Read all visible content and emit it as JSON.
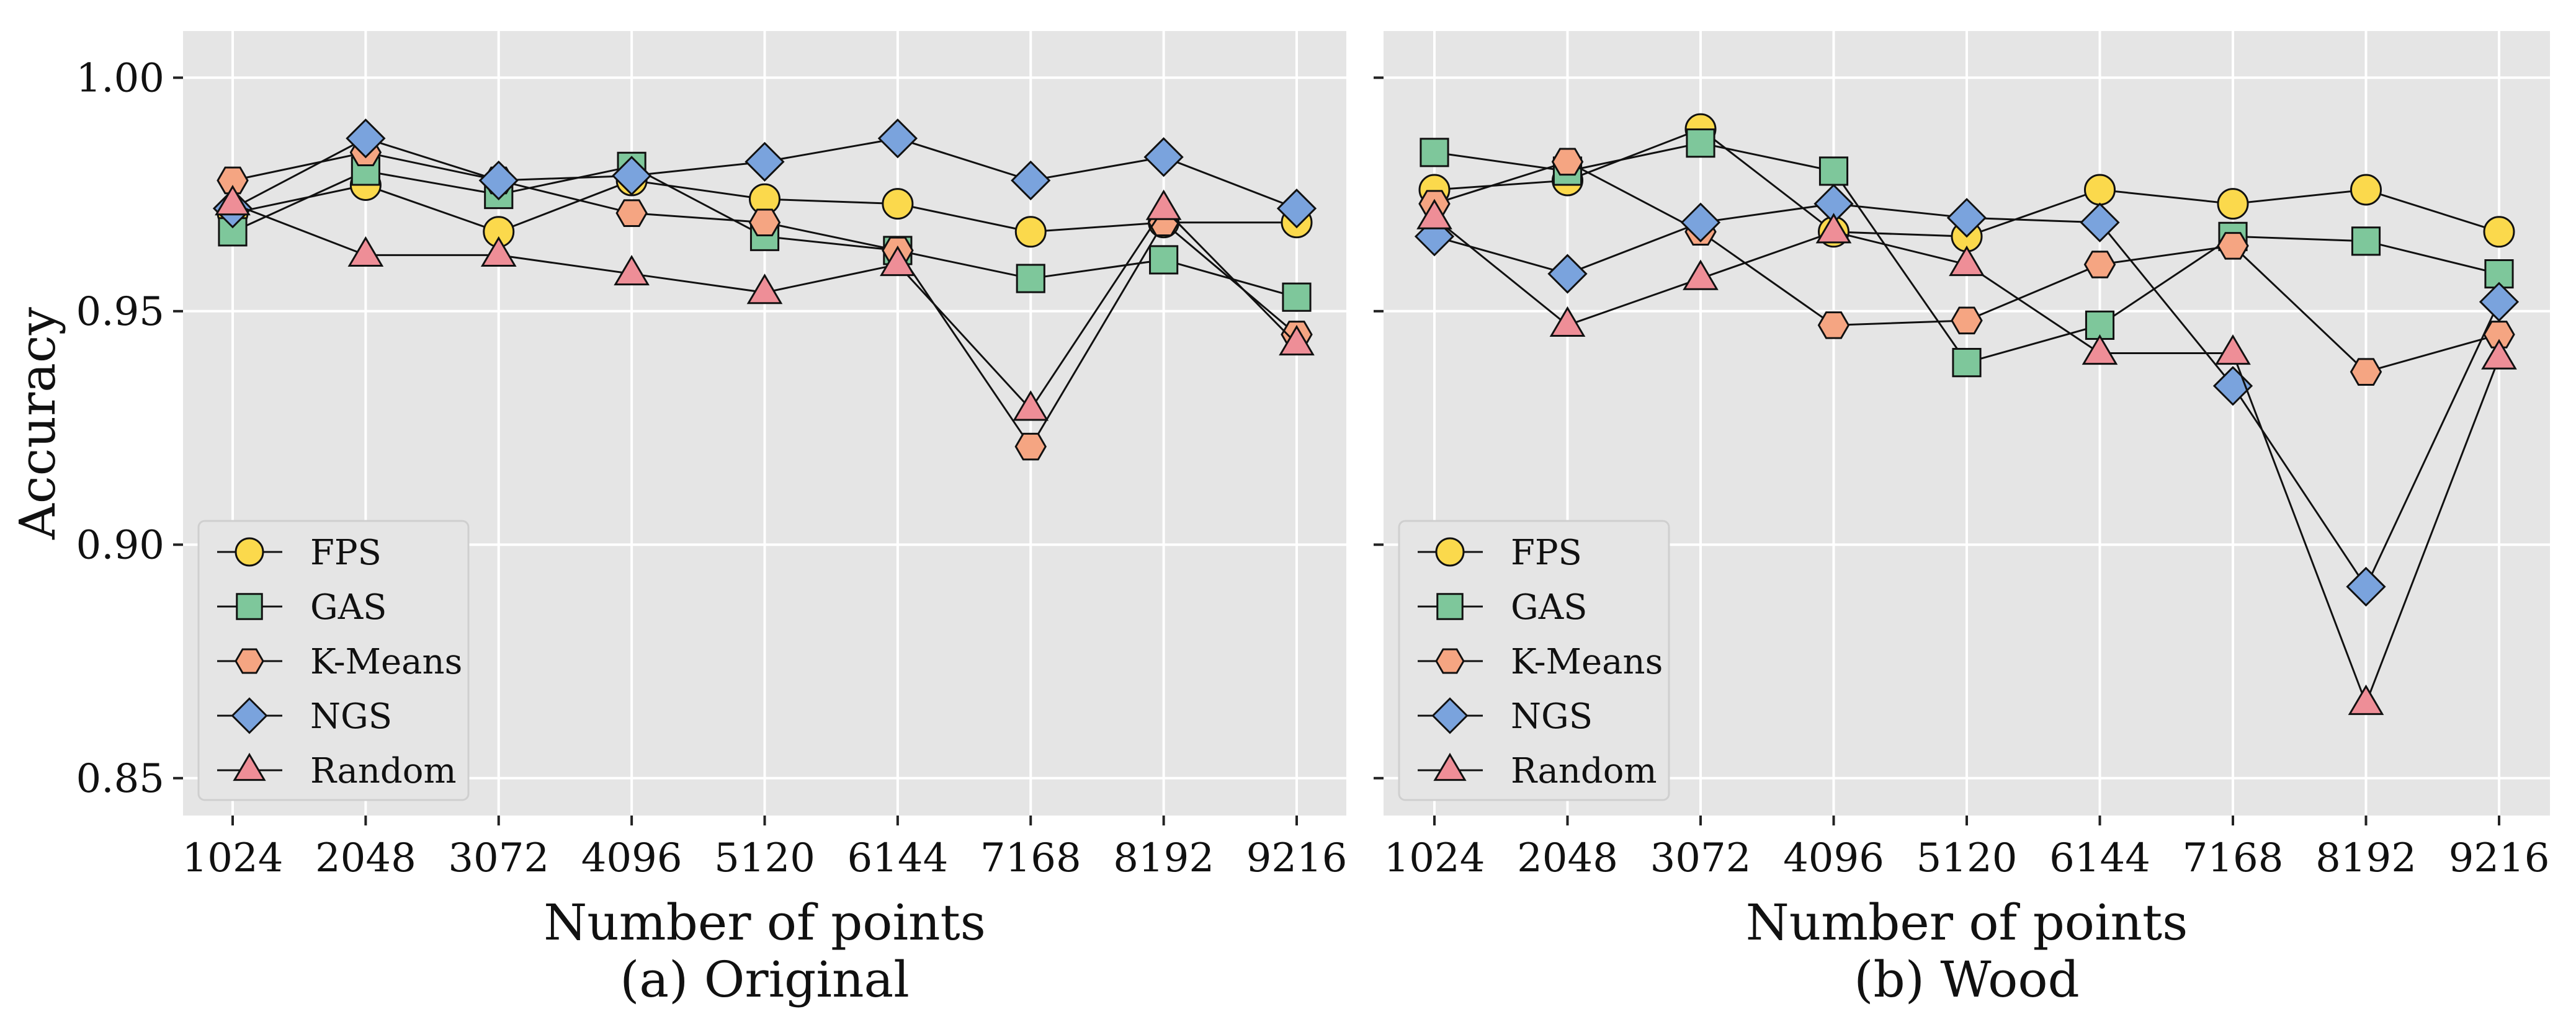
{
  "chart_data": [
    {
      "type": "line",
      "caption": "(a) Original",
      "xlabel": "Number of points",
      "ylabel": "Accuracy",
      "x": [
        1024,
        2048,
        3072,
        4096,
        5120,
        6144,
        7168,
        8192,
        9216
      ],
      "x_tick_labels": [
        "1024",
        "2048",
        "3072",
        "4096",
        "5120",
        "6144",
        "7168",
        "8192",
        "9216"
      ],
      "y_ticks": [
        0.85,
        0.9,
        0.95,
        1.0
      ],
      "y_tick_labels": [
        "0.85",
        "0.90",
        "0.95",
        "1.00"
      ],
      "ylim": [
        0.842,
        1.01
      ],
      "grid": true,
      "legend_position": "lower-left",
      "series": [
        {
          "name": "FPS",
          "marker": "circle",
          "color": "#FBD94C",
          "values": [
            0.971,
            0.977,
            0.967,
            0.978,
            0.974,
            0.973,
            0.967,
            0.969,
            0.969
          ]
        },
        {
          "name": "GAS",
          "marker": "square",
          "color": "#7EC79B",
          "values": [
            0.967,
            0.98,
            0.975,
            0.981,
            0.966,
            0.963,
            0.957,
            0.961,
            0.953
          ]
        },
        {
          "name": "K-Means",
          "marker": "hexagon",
          "color": "#F5A582",
          "values": [
            0.978,
            0.984,
            0.978,
            0.971,
            0.969,
            0.963,
            0.921,
            0.969,
            0.945
          ]
        },
        {
          "name": "NGS",
          "marker": "diamond",
          "color": "#7AA3DD",
          "values": [
            0.972,
            0.987,
            0.978,
            0.979,
            0.982,
            0.987,
            0.978,
            0.983,
            0.972
          ]
        },
        {
          "name": "Random",
          "marker": "triangle",
          "color": "#EE8E97",
          "values": [
            0.973,
            0.962,
            0.962,
            0.958,
            0.954,
            0.96,
            0.929,
            0.972,
            0.943
          ]
        }
      ]
    },
    {
      "type": "line",
      "caption": "(b) Wood",
      "xlabel": "Number of points",
      "ylabel": "",
      "x": [
        1024,
        2048,
        3072,
        4096,
        5120,
        6144,
        7168,
        8192,
        9216
      ],
      "x_tick_labels": [
        "1024",
        "2048",
        "3072",
        "4096",
        "5120",
        "6144",
        "7168",
        "8192",
        "9216"
      ],
      "y_ticks": [
        0.85,
        0.9,
        0.95,
        1.0
      ],
      "y_tick_labels": [],
      "ylim": [
        0.842,
        1.01
      ],
      "grid": true,
      "legend_position": "lower-left",
      "series": [
        {
          "name": "FPS",
          "marker": "circle",
          "color": "#FBD94C",
          "values": [
            0.976,
            0.978,
            0.989,
            0.967,
            0.966,
            0.976,
            0.973,
            0.976,
            0.967
          ]
        },
        {
          "name": "GAS",
          "marker": "square",
          "color": "#7EC79B",
          "values": [
            0.984,
            0.98,
            0.986,
            0.98,
            0.939,
            0.947,
            0.966,
            0.965,
            0.958
          ]
        },
        {
          "name": "K-Means",
          "marker": "hexagon",
          "color": "#F5A582",
          "values": [
            0.973,
            0.982,
            0.967,
            0.947,
            0.948,
            0.96,
            0.964,
            0.937,
            0.945
          ]
        },
        {
          "name": "NGS",
          "marker": "diamond",
          "color": "#7AA3DD",
          "values": [
            0.966,
            0.958,
            0.969,
            0.973,
            0.97,
            0.969,
            0.934,
            0.891,
            0.952
          ]
        },
        {
          "name": "Random",
          "marker": "triangle",
          "color": "#EE8E97",
          "values": [
            0.97,
            0.947,
            0.957,
            0.967,
            0.96,
            0.941,
            0.941,
            0.866,
            0.94
          ]
        }
      ]
    }
  ]
}
